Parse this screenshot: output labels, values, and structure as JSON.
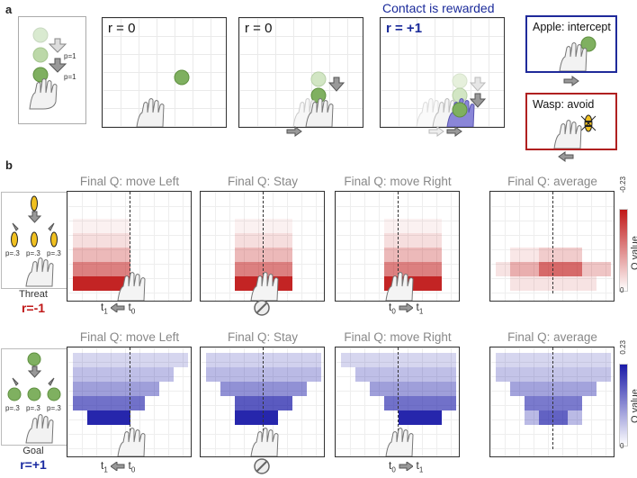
{
  "panel_a": {
    "letter": "a",
    "legend": {
      "p_top": "p=1",
      "p_bottom": "p=1"
    },
    "frames": [
      {
        "label": "r = 0"
      },
      {
        "label": "r = 0"
      },
      {
        "label": "r = +1",
        "caption": "Contact is rewarded"
      }
    ],
    "contexts": [
      {
        "title": "Apple: intercept",
        "border": "#1f2a9a"
      },
      {
        "title": "Wasp: avoid",
        "border": "#b02020"
      }
    ]
  },
  "panel_b": {
    "letter": "b",
    "column_titles": [
      "Final Q: move Left",
      "Final Q: Stay",
      "Final Q: move Right",
      "Final Q: average"
    ],
    "threat": {
      "label": "Threat",
      "reward": "r=-1",
      "reward_color": "#c01818",
      "probs": [
        "p=.3",
        "p=.3",
        "p=.3"
      ],
      "colorbar": {
        "max": "-0.23",
        "min": "0",
        "label": "Q value",
        "color": "#c01818"
      }
    },
    "goal": {
      "label": "Goal",
      "reward": "r=+1",
      "reward_color": "#1a2aa0",
      "probs": [
        "p=.3",
        "p=.3",
        "p=.3"
      ],
      "colorbar": {
        "max": "0.23",
        "min": "0",
        "label": "Q value",
        "color": "#1a1aa8"
      }
    },
    "time_labels": {
      "left": {
        "a": "t",
        "a_sub": "1",
        "b": "t",
        "b_sub": "0"
      },
      "right": {
        "a": "t",
        "a_sub": "0",
        "b": "t",
        "b_sub": "1"
      }
    }
  }
}
